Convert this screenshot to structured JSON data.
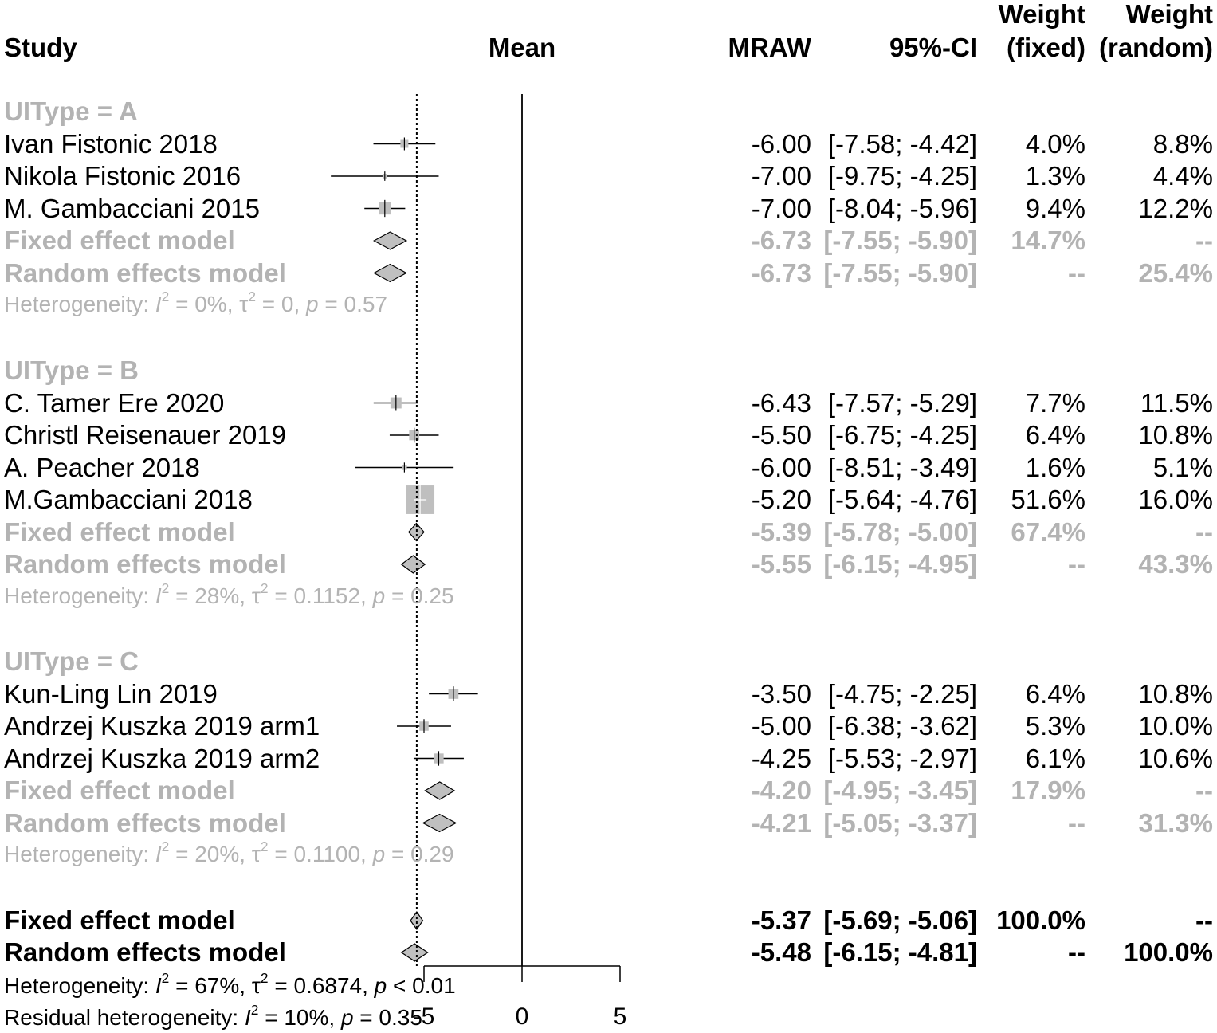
{
  "headers": {
    "study": "Study",
    "mean": "Mean",
    "mraw": "MRAW",
    "ci": "95%-CI",
    "weight_fixed_l1": "Weight",
    "weight_fixed_l2": "(fixed)",
    "weight_random_l1": "Weight",
    "weight_random_l2": "(random)"
  },
  "chart_data": {
    "type": "forest",
    "reference_line": 0,
    "overall_fixed_estimate": -5.37,
    "xaxis": {
      "ticks": [
        -5,
        0,
        5
      ],
      "tick_labels": [
        "-5",
        "0",
        "5"
      ],
      "range": [
        -5,
        5
      ]
    },
    "subgroups": [
      {
        "label": "UIType = A",
        "studies": [
          {
            "name": "Ivan Fistonic 2018",
            "mean": -6.0,
            "ci_text": "[-7.58; -4.42]",
            "ci": [
              -7.58,
              -4.42
            ],
            "w_fixed": "4.0%",
            "w_random": "8.8%",
            "weight": 4.0
          },
          {
            "name": "Nikola Fistonic 2016",
            "mean": -7.0,
            "ci_text": "[-9.75; -4.25]",
            "ci": [
              -9.75,
              -4.25
            ],
            "w_fixed": "1.3%",
            "w_random": "4.4%",
            "weight": 1.3
          },
          {
            "name": "M. Gambacciani 2015",
            "mean": -7.0,
            "ci_text": "[-8.04; -5.96]",
            "ci": [
              -8.04,
              -5.96
            ],
            "w_fixed": "9.4%",
            "w_random": "12.2%",
            "weight": 9.4
          }
        ],
        "fixed": {
          "name": "Fixed effect model",
          "mean": -6.73,
          "ci_text": "[-7.55; -5.90]",
          "ci": [
            -7.55,
            -5.9
          ],
          "w_fixed": "14.7%",
          "w_random": "--"
        },
        "random": {
          "name": "Random effects model",
          "mean": -6.73,
          "ci_text": "[-7.55; -5.90]",
          "ci": [
            -7.55,
            -5.9
          ],
          "w_fixed": "--",
          "w_random": "25.4%"
        },
        "het": {
          "prefix": "Heterogeneity: ",
          "i2": "I",
          "i2_text": " = 0%, τ",
          "tau_text": " = 0, ",
          "p": "p",
          "p_text": " = 0.57"
        }
      },
      {
        "label": "UIType = B",
        "studies": [
          {
            "name": "C. Tamer Ere 2020",
            "mean": -6.43,
            "ci_text": "[-7.57; -5.29]",
            "ci": [
              -7.57,
              -5.29
            ],
            "w_fixed": "7.7%",
            "w_random": "11.5%",
            "weight": 7.7
          },
          {
            "name": "Christl Reisenauer 2019",
            "mean": -5.5,
            "ci_text": "[-6.75; -4.25]",
            "ci": [
              -6.75,
              -4.25
            ],
            "w_fixed": "6.4%",
            "w_random": "10.8%",
            "weight": 6.4
          },
          {
            "name": "A. Peacher 2018",
            "mean": -6.0,
            "ci_text": "[-8.51; -3.49]",
            "ci": [
              -8.51,
              -3.49
            ],
            "w_fixed": "1.6%",
            "w_random": "5.1%",
            "weight": 1.6
          },
          {
            "name": "M.Gambacciani 2018",
            "mean": -5.2,
            "ci_text": "[-5.64; -4.76]",
            "ci": [
              -5.64,
              -4.76
            ],
            "w_fixed": "51.6%",
            "w_random": "16.0%",
            "weight": 51.6
          }
        ],
        "fixed": {
          "name": "Fixed effect model",
          "mean": -5.39,
          "ci_text": "[-5.78; -5.00]",
          "ci": [
            -5.78,
            -5.0
          ],
          "w_fixed": "67.4%",
          "w_random": "--"
        },
        "random": {
          "name": "Random effects model",
          "mean": -5.55,
          "ci_text": "[-6.15; -4.95]",
          "ci": [
            -6.15,
            -4.95
          ],
          "w_fixed": "--",
          "w_random": "43.3%"
        },
        "het": {
          "prefix": "Heterogeneity: ",
          "i2": "I",
          "i2_text": " = 28%, τ",
          "tau_text": " = 0.1152, ",
          "p": "p",
          "p_text": " = 0.25"
        }
      },
      {
        "label": "UIType = C",
        "studies": [
          {
            "name": "Kun-Ling Lin 2019",
            "mean": -3.5,
            "ci_text": "[-4.75; -2.25]",
            "ci": [
              -4.75,
              -2.25
            ],
            "w_fixed": "6.4%",
            "w_random": "10.8%",
            "weight": 6.4
          },
          {
            "name": "Andrzej Kuszka 2019 arm1",
            "mean": -5.0,
            "ci_text": "[-6.38; -3.62]",
            "ci": [
              -6.38,
              -3.62
            ],
            "w_fixed": "5.3%",
            "w_random": "10.0%",
            "weight": 5.3
          },
          {
            "name": "Andrzej Kuszka 2019 arm2",
            "mean": -4.25,
            "ci_text": "[-5.53; -2.97]",
            "ci": [
              -5.53,
              -2.97
            ],
            "w_fixed": "6.1%",
            "w_random": "10.6%",
            "weight": 6.1
          }
        ],
        "fixed": {
          "name": "Fixed effect model",
          "mean": -4.2,
          "ci_text": "[-4.95; -3.45]",
          "ci": [
            -4.95,
            -3.45
          ],
          "w_fixed": "17.9%",
          "w_random": "--"
        },
        "random": {
          "name": "Random effects model",
          "mean": -4.21,
          "ci_text": "[-5.05; -3.37]",
          "ci": [
            -5.05,
            -3.37
          ],
          "w_fixed": "--",
          "w_random": "31.3%"
        },
        "het": {
          "prefix": "Heterogeneity: ",
          "i2": "I",
          "i2_text": " = 20%, τ",
          "tau_text": " = 0.1100, ",
          "p": "p",
          "p_text": " = 0.29"
        }
      }
    ],
    "overall": {
      "fixed": {
        "name": "Fixed effect model",
        "mean": -5.37,
        "ci_text": "[-5.69; -5.06]",
        "ci": [
          -5.69,
          -5.06
        ],
        "w_fixed": "100.0%",
        "w_random": "--"
      },
      "random": {
        "name": "Random effects model",
        "mean": -5.48,
        "ci_text": "[-6.15; -4.81]",
        "ci": [
          -6.15,
          -4.81
        ],
        "w_fixed": "--",
        "w_random": "100.0%"
      },
      "het": {
        "prefix": "Heterogeneity: ",
        "i2": "I",
        "i2_text": " = 67%, τ",
        "tau_text": " = 0.6874, ",
        "p": "p",
        "p_text": " < 0.01"
      },
      "residual": {
        "prefix": "Residual heterogeneity: ",
        "i2": "I",
        "i2_text": " = 10%, ",
        "p": "p",
        "p_text": " = 0.35"
      }
    }
  },
  "colors": {
    "subgroup": "#b3b3b3",
    "box": "#bfbfbf",
    "diamond": "#c0c0c0",
    "text": "#000000"
  }
}
